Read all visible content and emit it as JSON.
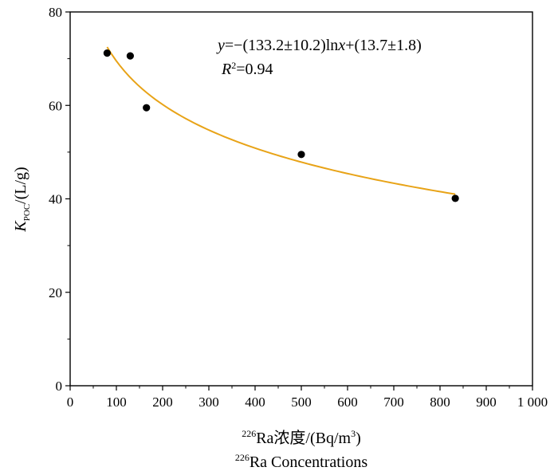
{
  "chart_data": {
    "type": "scatter",
    "x_ticks": [
      0,
      100,
      200,
      300,
      400,
      500,
      600,
      700,
      800,
      900,
      1000
    ],
    "x_tick_labels": [
      "0",
      "100",
      "200",
      "300",
      "400",
      "500",
      "600",
      "700",
      "800",
      "900",
      "1 000"
    ],
    "y_ticks": [
      0,
      20,
      40,
      60,
      80
    ],
    "y_tick_labels": [
      "0",
      "20",
      "40",
      "60",
      "80"
    ],
    "xlim": [
      0,
      1000
    ],
    "ylim": [
      0,
      80
    ],
    "xlabel_line1": {
      "sup": "226",
      "text": "Ra浓度/(Bq/m",
      "sup2": "3",
      "tail": ")"
    },
    "xlabel_line2": {
      "sup": "226",
      "text": "Ra Concentrations"
    },
    "ylabel": {
      "main": "K",
      "sub": "POC",
      "tail": "/(L/g)"
    },
    "points": [
      {
        "x": 80,
        "y": 71.2
      },
      {
        "x": 130,
        "y": 70.6
      },
      {
        "x": 165,
        "y": 59.5
      },
      {
        "x": 500,
        "y": 49.5
      },
      {
        "x": 833,
        "y": 40.1
      }
    ],
    "fit_curve": {
      "color": "#e8a317",
      "x_range": [
        80,
        833
      ]
    },
    "annotation": {
      "equation": "y=−(133.2±10.2)lnx+(13.7±1.8)",
      "r2": "R²=0.94"
    },
    "colors": {
      "points": "#000000",
      "axis": "#000000",
      "fit": "#e8a317"
    }
  }
}
